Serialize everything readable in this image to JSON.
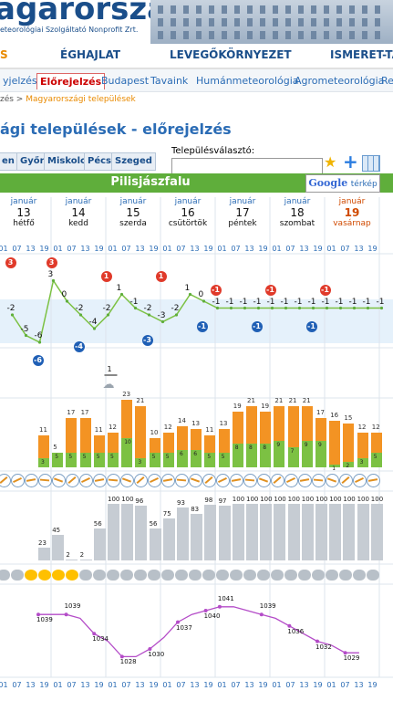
{
  "header": {
    "logo_text": "agarorszag",
    "logo_sub": "eteorológiai Szolgáltató Nonprofit Zrt."
  },
  "nav1": [
    "S",
    "ÉGHAJLAT",
    "LEVEGŐKÖRNYEZET",
    "ISMERET-TÁ"
  ],
  "nav2": [
    "yjelzés",
    "Előrejelzés",
    "Budapest",
    "Tavaink",
    "Humánmeteorológia",
    "Agrometeorológia",
    "Re"
  ],
  "nav2_active": 1,
  "breadcrumb": {
    "prefix": "zés > ",
    "link": "Magyarországi települések"
  },
  "page_title": "ági települések - előrejelzés",
  "cities": [
    "en",
    "Győr",
    "Miskolc",
    "Pécs",
    "Szeged"
  ],
  "selector": {
    "label": "Településválasztó:",
    "value": ""
  },
  "place": "Pilisjászfalu",
  "google_map": {
    "brand": "Google",
    "label": "térkép"
  },
  "days": [
    {
      "month": "január",
      "day": "13",
      "weekday": "hétfő"
    },
    {
      "month": "január",
      "day": "14",
      "weekday": "kedd"
    },
    {
      "month": "január",
      "day": "15",
      "weekday": "szerda"
    },
    {
      "month": "január",
      "day": "16",
      "weekday": "csütörtök"
    },
    {
      "month": "január",
      "day": "17",
      "weekday": "péntek"
    },
    {
      "month": "január",
      "day": "18",
      "weekday": "szombat"
    },
    {
      "month": "január",
      "day": "19",
      "weekday": "vasárnap"
    }
  ],
  "hours": [
    "01",
    "07",
    "13",
    "19",
    "01",
    "07",
    "13",
    "19",
    "01",
    "07",
    "13",
    "19",
    "01",
    "07",
    "13",
    "19",
    "01",
    "07",
    "13",
    "19",
    "01",
    "07",
    "13",
    "19",
    "01",
    "07",
    "13",
    "19"
  ],
  "temp": {
    "values": [
      -2,
      -5,
      -6,
      3,
      0,
      -2,
      -4,
      -2,
      1,
      -1,
      -2,
      -3,
      -2,
      1,
      0,
      -1,
      -1,
      -1,
      -1,
      -1,
      -1,
      -1,
      -1,
      -1,
      -1,
      -1,
      -1,
      -1
    ],
    "max": [
      {
        "i": 0,
        "v": "3"
      },
      {
        "i": 3,
        "v": "3"
      },
      {
        "i": 7,
        "v": "1"
      },
      {
        "i": 11,
        "v": "1"
      },
      {
        "i": 15,
        "v": "-1"
      },
      {
        "i": 19,
        "v": "-1"
      },
      {
        "i": 23,
        "v": "-1"
      }
    ],
    "min": [
      {
        "i": 2,
        "v": "-6"
      },
      {
        "i": 5,
        "v": "-4"
      },
      {
        "i": 10,
        "v": "-3"
      },
      {
        "i": 14,
        "v": "-1"
      },
      {
        "i": 18,
        "v": "-1"
      },
      {
        "i": 22,
        "v": "-1"
      }
    ]
  },
  "snow": {
    "value": "1",
    "index": 7
  },
  "wind": {
    "gust": [
      11,
      5,
      17,
      17,
      11,
      12,
      23,
      21,
      10,
      12,
      14,
      13,
      11,
      13,
      19,
      21,
      19,
      21,
      21,
      21,
      17,
      16,
      15,
      12,
      12
    ],
    "speed": [
      3,
      5,
      5,
      5,
      5,
      5,
      10,
      3,
      5,
      5,
      6,
      6,
      5,
      5,
      8,
      8,
      8,
      9,
      7,
      9,
      9,
      1,
      2,
      3,
      5
    ]
  },
  "cloud": [
    23,
    45,
    2,
    2,
    56,
    100,
    100,
    96,
    56,
    75,
    93,
    83,
    98,
    97,
    100,
    100,
    100,
    100,
    100,
    100,
    100,
    100,
    100,
    100,
    100
  ],
  "pressure": {
    "values": [
      1039,
      1039,
      1039,
      1038,
      1034,
      1032,
      1028,
      1028,
      1030,
      1033,
      1037,
      1039,
      1040,
      1041,
      1041,
      1040,
      1039,
      1038,
      1036,
      1034,
      1032,
      1031,
      1029,
      1029
    ],
    "labels": [
      {
        "i": 0,
        "v": "1039"
      },
      {
        "i": 2,
        "v": "1039"
      },
      {
        "i": 4,
        "v": "1034"
      },
      {
        "i": 6,
        "v": "1028"
      },
      {
        "i": 8,
        "v": "1030"
      },
      {
        "i": 10,
        "v": "1037"
      },
      {
        "i": 12,
        "v": "1040"
      },
      {
        "i": 13,
        "v": "1041"
      },
      {
        "i": 16,
        "v": "1039"
      },
      {
        "i": 18,
        "v": "1036"
      },
      {
        "i": 20,
        "v": "1032"
      },
      {
        "i": 22,
        "v": "1029"
      }
    ]
  },
  "colors": {
    "green": "#5fae3b",
    "orange": "#f39323",
    "purple": "#b44cc8",
    "blue": "#2b6cb5"
  }
}
